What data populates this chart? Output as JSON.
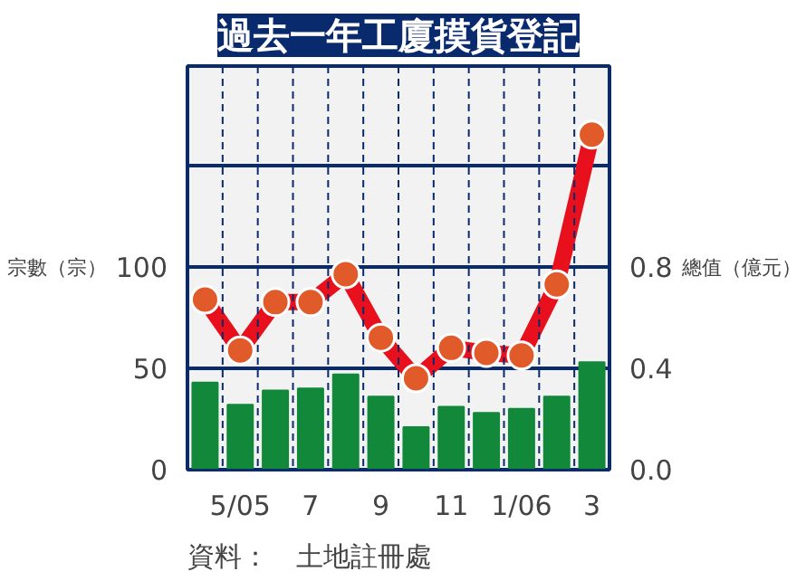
{
  "chart_data": {
    "type": "bar",
    "title": "過去一年工廈摸貨登記",
    "categories": [
      null,
      "5/05",
      null,
      "7",
      null,
      "9",
      null,
      "11",
      null,
      "1/06",
      null,
      "3"
    ],
    "series": [
      {
        "color": "#12883a",
        "values": [
          43,
          32,
          39,
          40,
          47,
          36,
          21,
          31,
          28,
          30,
          36,
          53
        ]
      },
      {
        "type": "line",
        "axis": "y2",
        "color": "#e8101c",
        "marker": "circle",
        "values": [
          0.67,
          0.47,
          0.66,
          0.66,
          0.77,
          0.52,
          0.36,
          0.48,
          0.46,
          0.45,
          0.73,
          1.32
        ]
      }
    ],
    "ylabel": "宗數（宗）",
    "y2label": "總值（億元）",
    "ylim": [
      0,
      199
    ],
    "yticks": [
      0,
      50,
      100,
      {
        "value": 150,
        "label": null
      }
    ],
    "y2lim": [
      0,
      1.59
    ],
    "y2ticks": [
      {
        "value": 0,
        "label": "0.0"
      },
      0.4,
      0.8,
      {
        "value": 1.2,
        "label": null
      }
    ],
    "grid": true,
    "annotations": [
      "資料：　土地註冊處"
    ]
  }
}
